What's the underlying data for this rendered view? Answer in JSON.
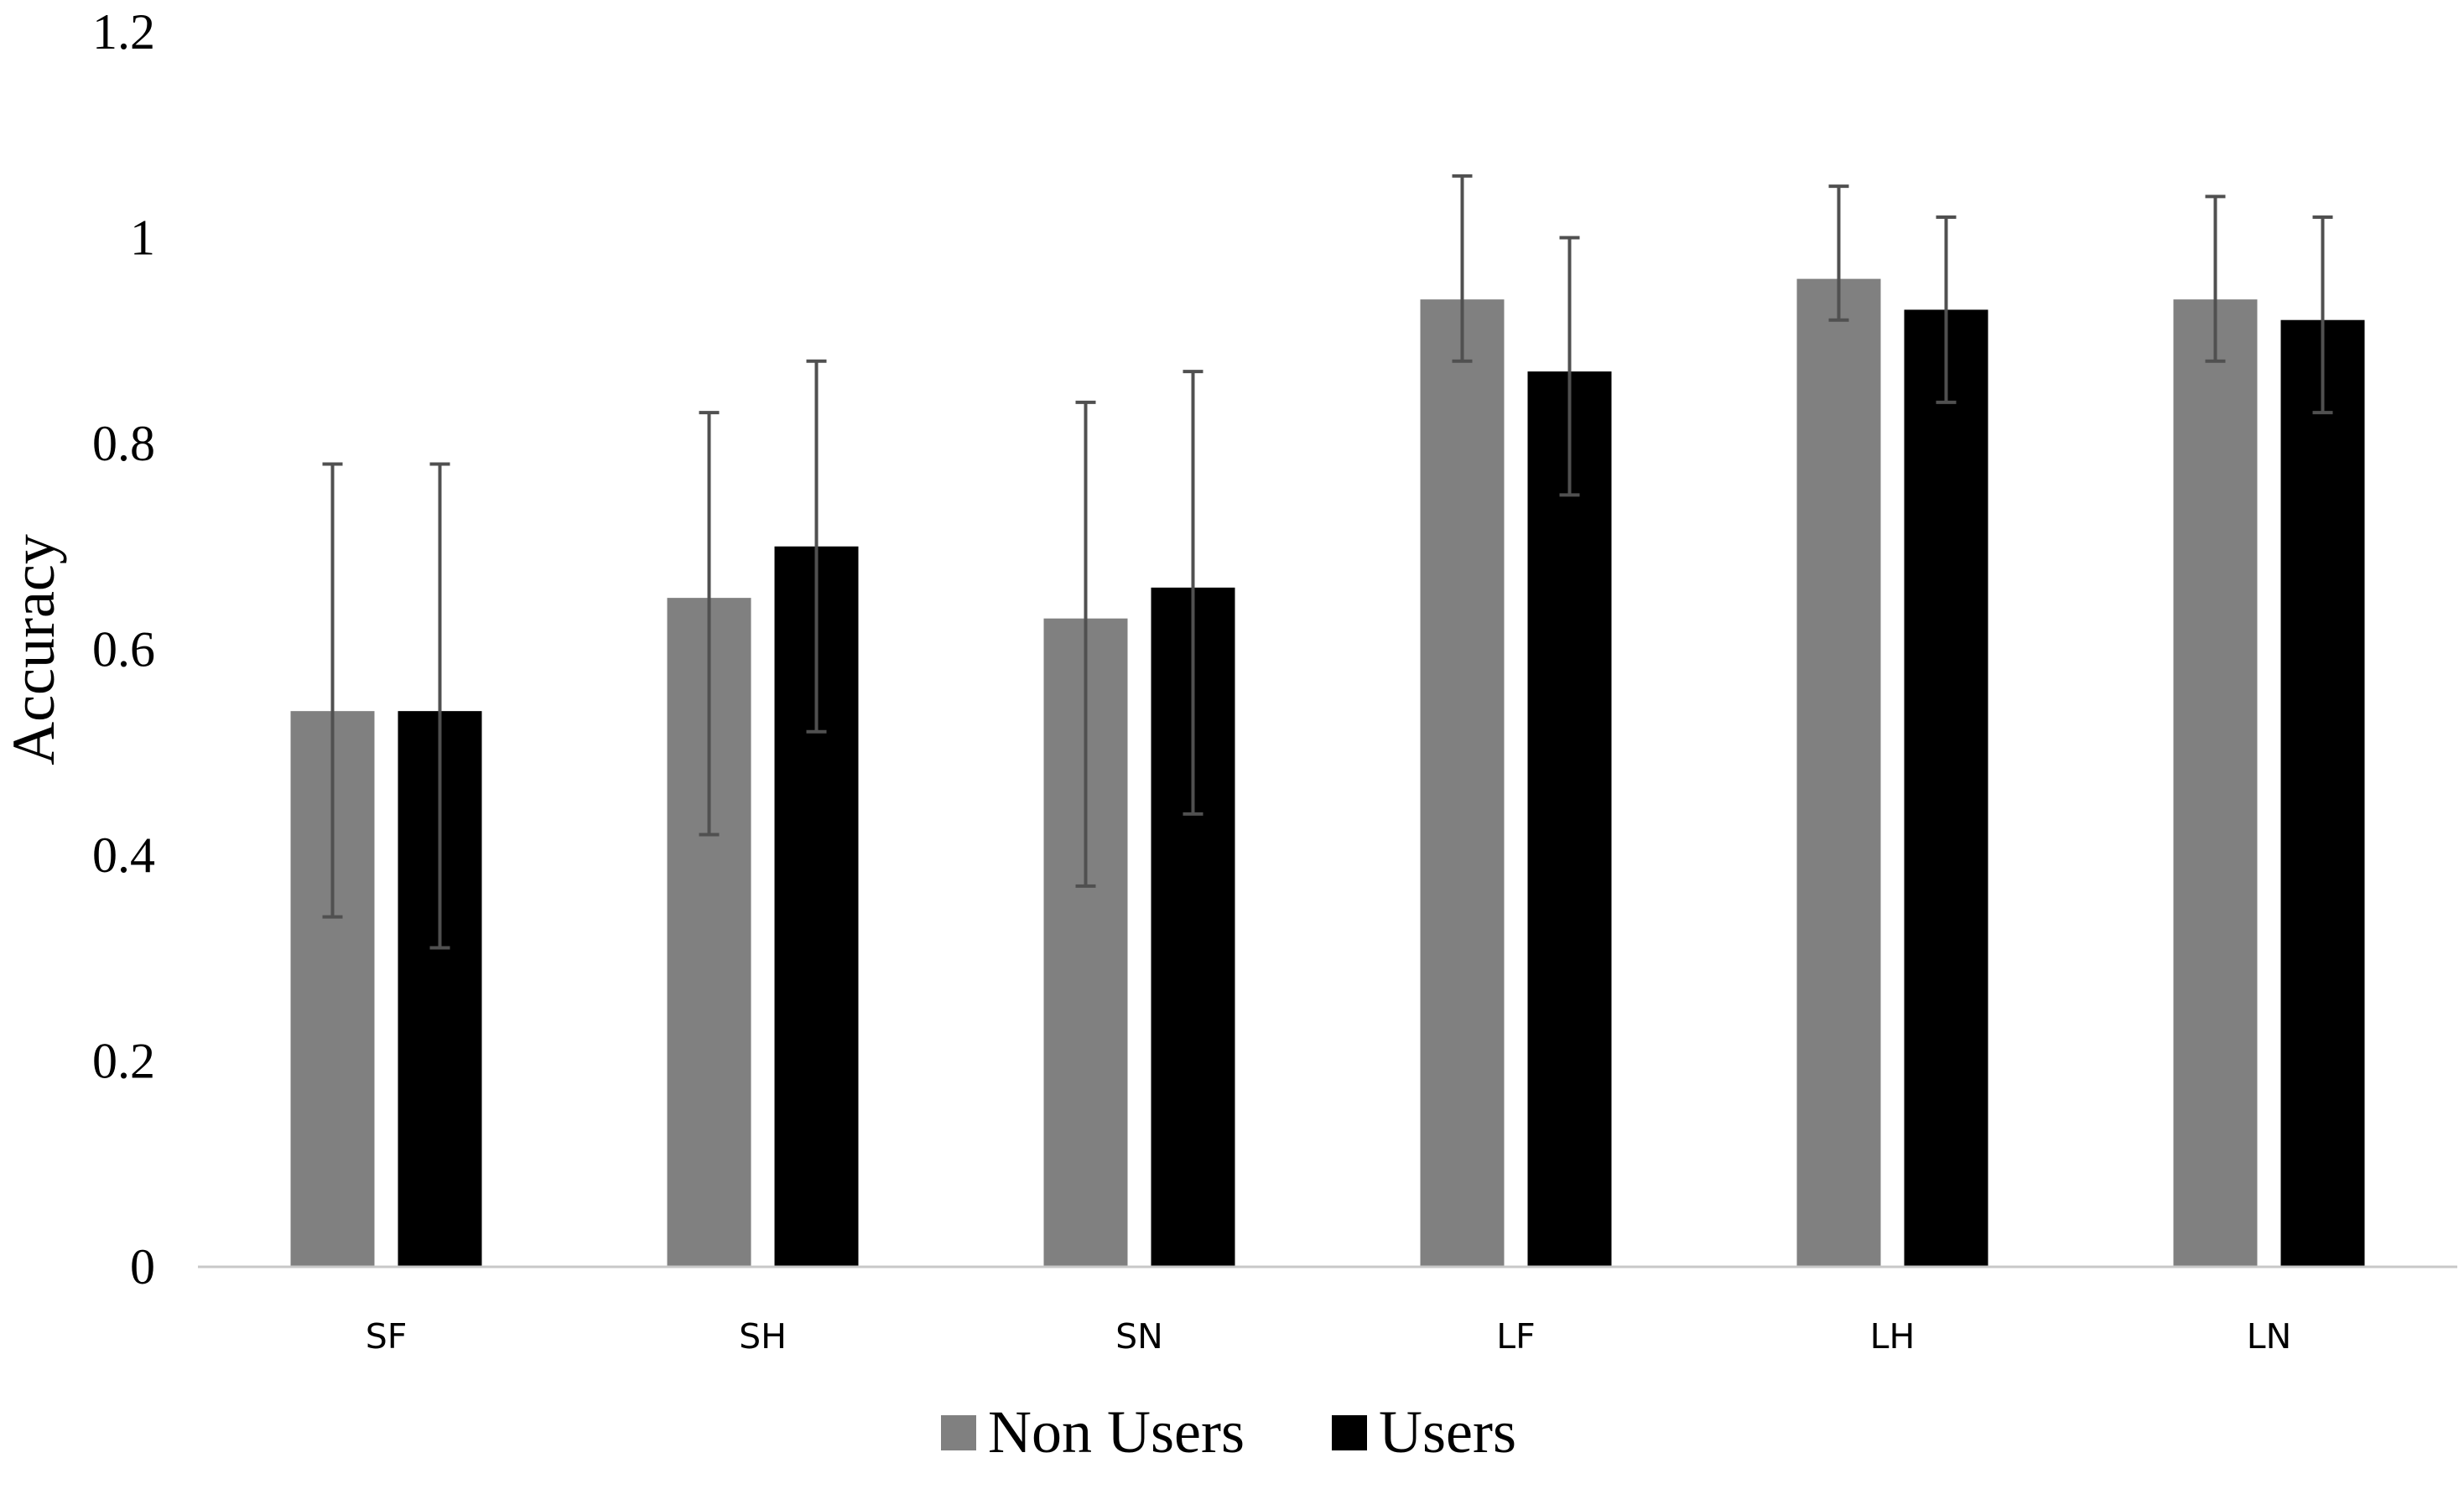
{
  "chart_data": {
    "type": "bar",
    "categories": [
      "SF",
      "SH",
      "SN",
      "LF",
      "LH",
      "LN"
    ],
    "series": [
      {
        "name": "Non Users",
        "color": "#808080",
        "values": [
          0.54,
          0.65,
          0.63,
          0.94,
          0.96,
          0.94
        ],
        "error_upper": [
          0.78,
          0.83,
          0.84,
          1.06,
          1.05,
          1.04
        ],
        "error_lower": [
          0.34,
          0.42,
          0.37,
          0.88,
          0.92,
          0.88
        ]
      },
      {
        "name": "Users",
        "color": "#000000",
        "values": [
          0.54,
          0.7,
          0.66,
          0.87,
          0.93,
          0.92
        ],
        "error_upper": [
          0.78,
          0.88,
          0.87,
          1.0,
          1.02,
          1.02
        ],
        "error_lower": [
          0.31,
          0.52,
          0.44,
          0.75,
          0.84,
          0.83
        ]
      }
    ],
    "yticks": [
      "0",
      "0.2",
      "0.4",
      "0.6",
      "0.8",
      "1",
      "1.2"
    ],
    "ylim": [
      0,
      1.2
    ],
    "xlabel": "",
    "ylabel": "Accuracy",
    "title": "",
    "grid": false,
    "legend_position": "bottom-center",
    "error_bar_color": "#505050",
    "axis_color": "#c8c8c8"
  }
}
